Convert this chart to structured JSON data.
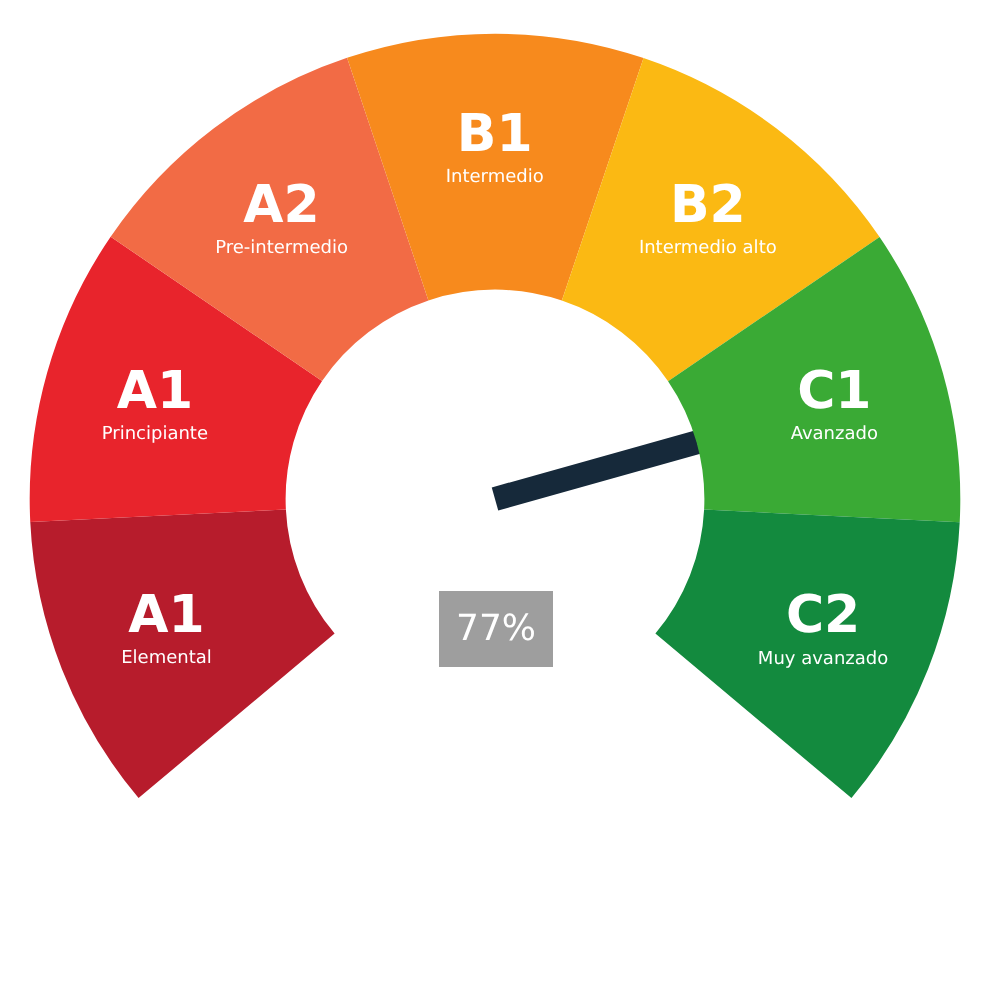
{
  "chart_data": {
    "type": "donut",
    "categories": [
      "A1\nElemental",
      "A1\nPrincipiante",
      "A2\nPre-intermedio",
      "B1\nIntermedio",
      "B2\nIntermedio alto",
      "C1\nAvanzado",
      "C2\nMuy avanzado"
    ],
    "values": [
      14.29,
      14.29,
      14.29,
      14.29,
      14.28,
      14.28,
      14.28
    ],
    "colors": [
      "#b71c2c",
      "#e8242c",
      "#f26b45",
      "#f78a1d",
      "#fbb913",
      "#3aaa35",
      "#138a3e"
    ],
    "needle": "C1\nAvanzado",
    "annotations": [
      "77%"
    ],
    "legend": false
  }
}
